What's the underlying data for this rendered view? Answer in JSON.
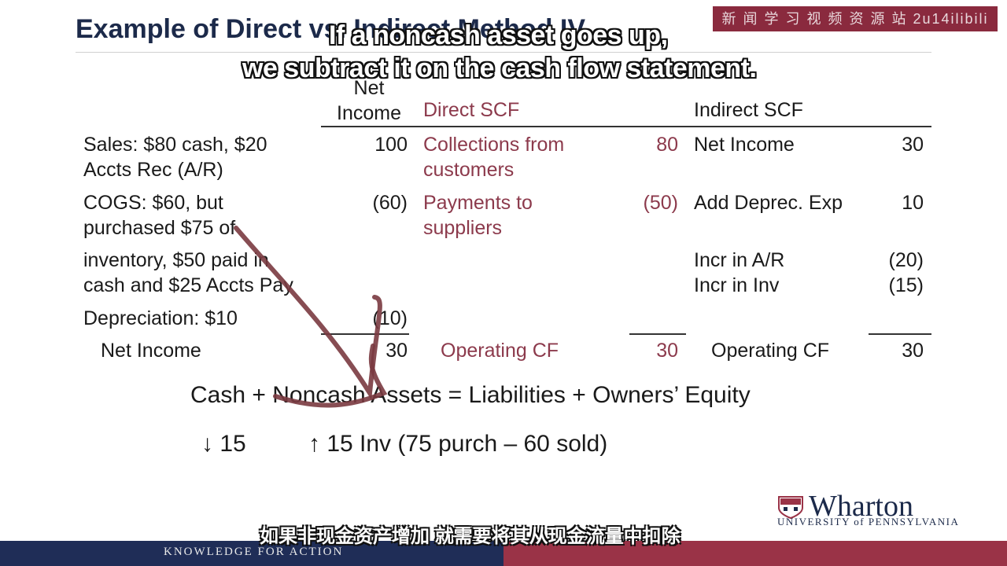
{
  "slide": {
    "title": "Example of Direct vs. Indirect Method IV",
    "watermark": "新 闻 学 习 视 频 资 源 站 2u14ilibili"
  },
  "subtitles": {
    "en_line1": "If a noncash asset goes up,",
    "en_line2": "we subtract it on the cash flow statement.",
    "cn": "如果非现金资产增加 就需要将其从现金流量中扣除"
  },
  "table": {
    "headers": {
      "net_income": "Net\nIncome",
      "direct": "Direct SCF",
      "indirect": "Indirect SCF"
    },
    "rows": [
      {
        "desc": "Sales: $80 cash, $20\nAccts Rec (A/R)",
        "ni": "100",
        "direct_label": "Collections from\ncustomers",
        "direct_val": "80",
        "indirect_label": "Net Income",
        "indirect_val": "30"
      },
      {
        "desc": "COGS: $60, but\npurchased $75 of",
        "ni": "(60)",
        "direct_label": "Payments to\nsuppliers",
        "direct_val": "(50)",
        "indirect_label": "Add Deprec. Exp",
        "indirect_val": "10"
      },
      {
        "desc": "inventory, $50 paid in\ncash and $25 Accts Pay",
        "ni": "",
        "direct_label": "",
        "direct_val": "",
        "indirect_label": "Incr in A/R\nIncr in Inv",
        "indirect_val": "(20)\n(15)"
      },
      {
        "desc": "Depreciation: $10",
        "ni": "(10)",
        "direct_label": "",
        "direct_val": "",
        "indirect_label": "",
        "indirect_val": ""
      }
    ],
    "totals": {
      "ni_label": "Net Income",
      "ni_val": "30",
      "direct_label": "Operating CF",
      "direct_val": "30",
      "indirect_label": "Operating CF",
      "indirect_val": "30"
    }
  },
  "equation": {
    "text": "Cash + Noncash Assets = Liabilities + Owners’ Equity",
    "cash_change": "↓ 15",
    "noncash_change": "↑ 15 Inv (75 purch – 60 sold)"
  },
  "branding": {
    "name": "Wharton",
    "university": "UNIVERSITY of PENNSYLVANIA",
    "footer": "KNOWLEDGE FOR ACTION"
  },
  "colors": {
    "direct_accent": "#8c3a4c",
    "footer_blue": "#1f2d57",
    "footer_red": "#9a3347",
    "annotation_stroke": "#7a3a40"
  }
}
